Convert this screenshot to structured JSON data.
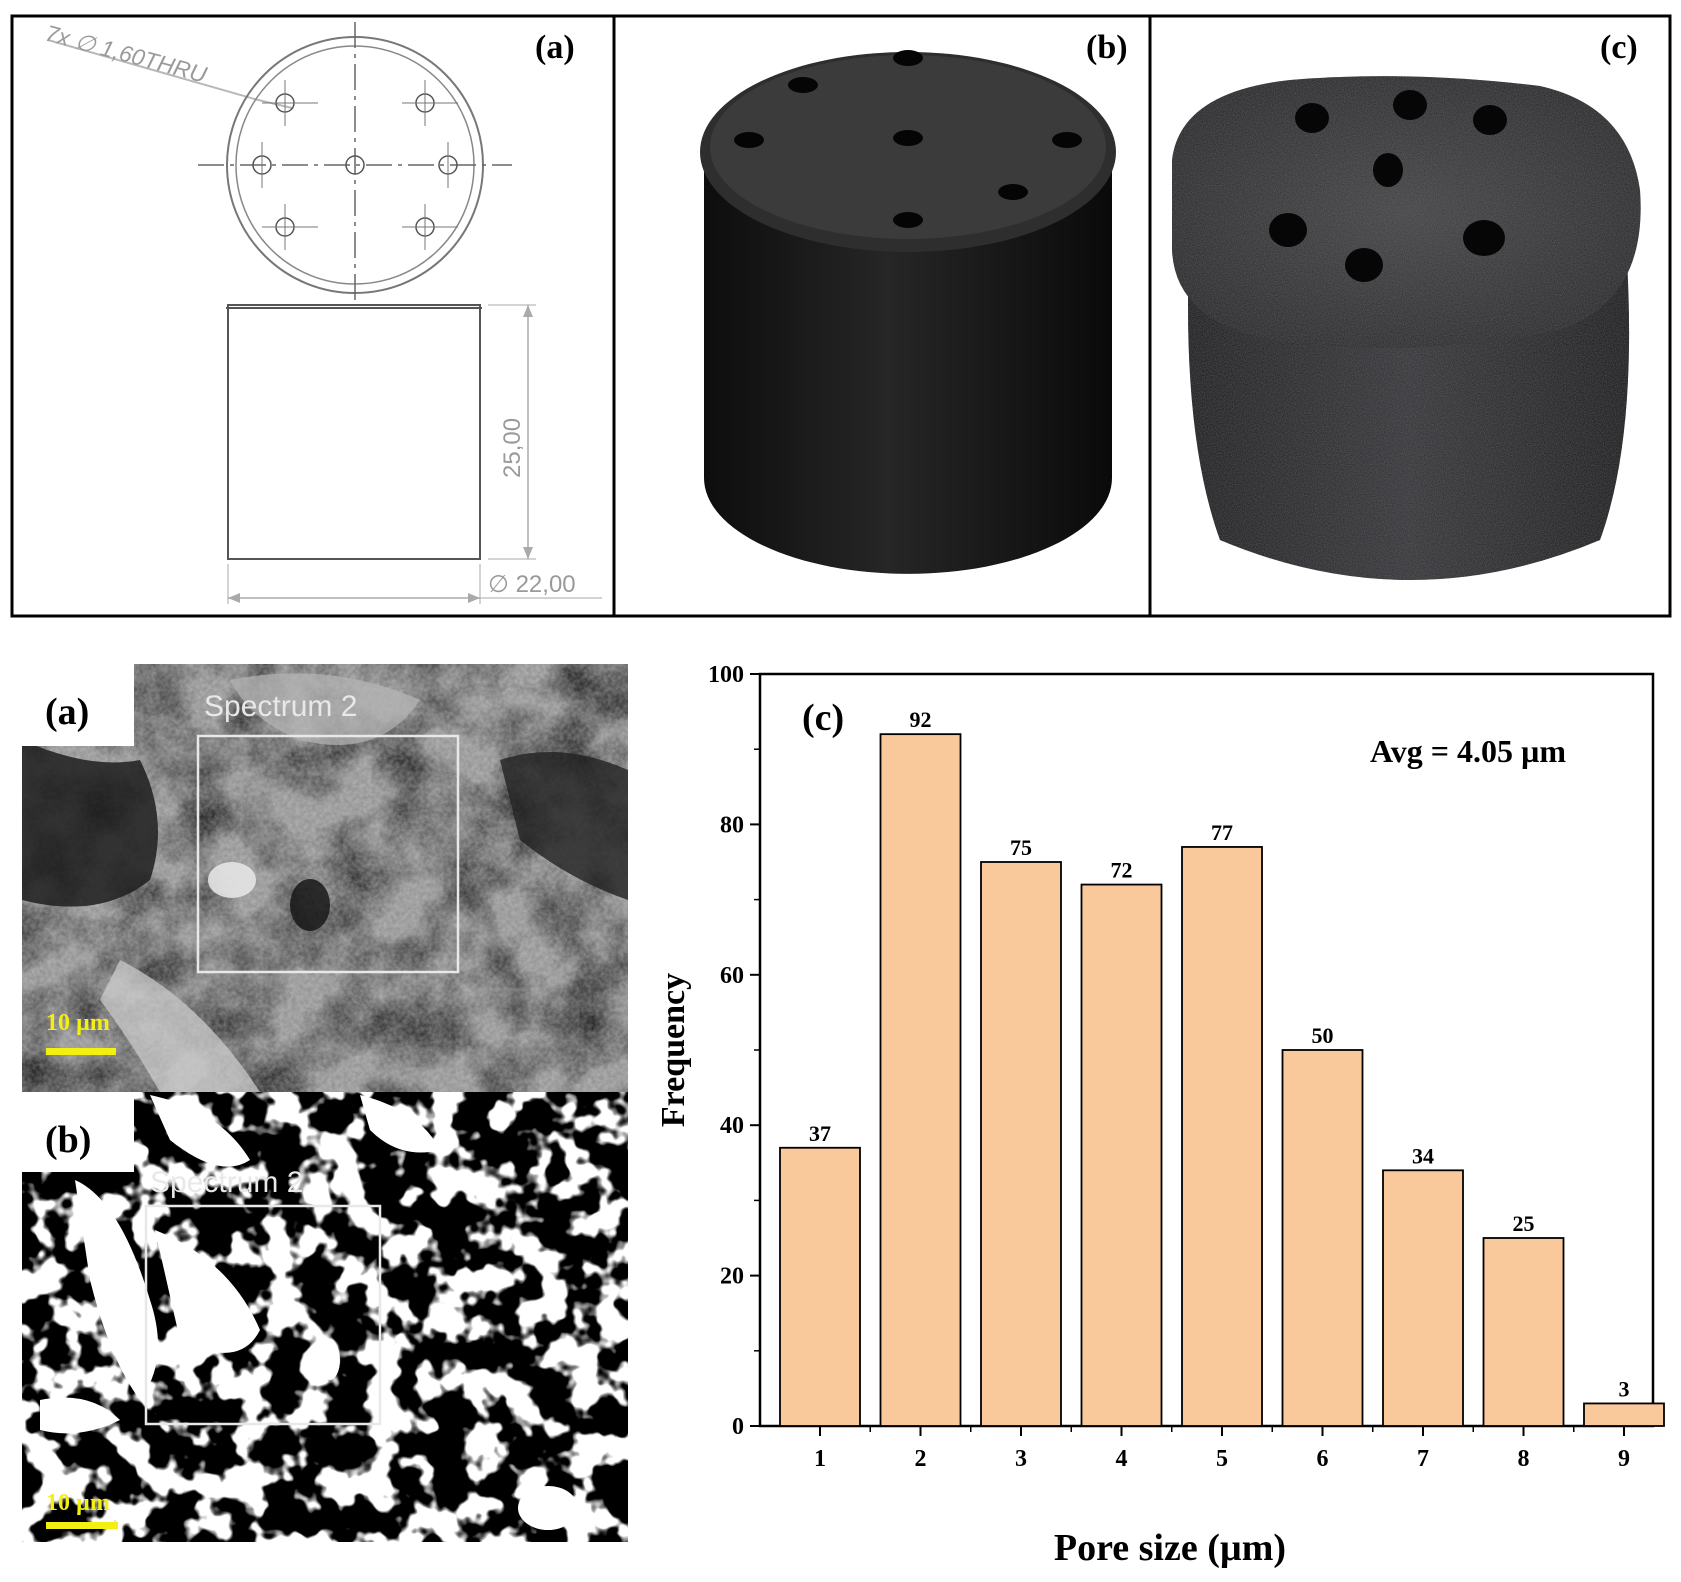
{
  "top_panels": {
    "a": {
      "label": "(a)",
      "hole_callout": "7x ∅ 1,60THRU",
      "height_dim": "25,00",
      "diameter_dim": "∅ 22,00"
    },
    "b": {
      "label": "(b)"
    },
    "c": {
      "label": "(c)"
    }
  },
  "sem_panels": {
    "a": {
      "label": "(a)",
      "spectrum_label": "Spectrum 2",
      "scale_label": "10 µm",
      "scale_color": "#f2ef12"
    },
    "b": {
      "label": "(b)",
      "spectrum_label": "Spectrum 2",
      "scale_label": "10 µm",
      "scale_color": "#f2ef12"
    }
  },
  "chart_data": {
    "type": "bar",
    "panel_label": "(c)",
    "annotation": "Avg = 4.05 µm",
    "xlabel": "Pore size (µm)",
    "ylabel": "Frequency",
    "categories": [
      "1",
      "2",
      "3",
      "4",
      "5",
      "6",
      "7",
      "8",
      "9"
    ],
    "values": [
      37,
      92,
      75,
      72,
      77,
      50,
      34,
      25,
      3
    ],
    "data_labels": [
      "37",
      "92",
      "75",
      "72",
      "77",
      "50",
      "34",
      "25",
      "3"
    ],
    "yticks": [
      "0",
      "20",
      "40",
      "60",
      "80",
      "100"
    ],
    "ylim": [
      0,
      100
    ],
    "bar_color": "#f9c99b",
    "grid": false
  }
}
